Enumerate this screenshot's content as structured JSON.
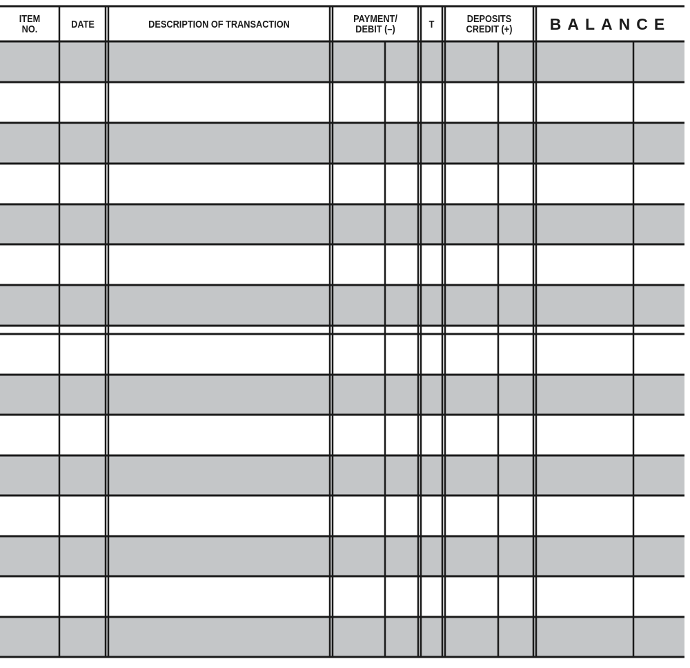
{
  "form": {
    "headers": {
      "item_no": "ITEM NO.",
      "date": "DATE",
      "description": "DESCRIPTION OF TRANSACTION",
      "payment_debit": "PAYMENT/ DEBIT (–)",
      "t": "T",
      "deposits_credit": "DEPOSITS CREDIT (+)",
      "balance": "BALANCE"
    },
    "colors": {
      "line": "#1a1a1a",
      "shaded_row": "#c4c6c8",
      "background": "#ffffff"
    }
  }
}
